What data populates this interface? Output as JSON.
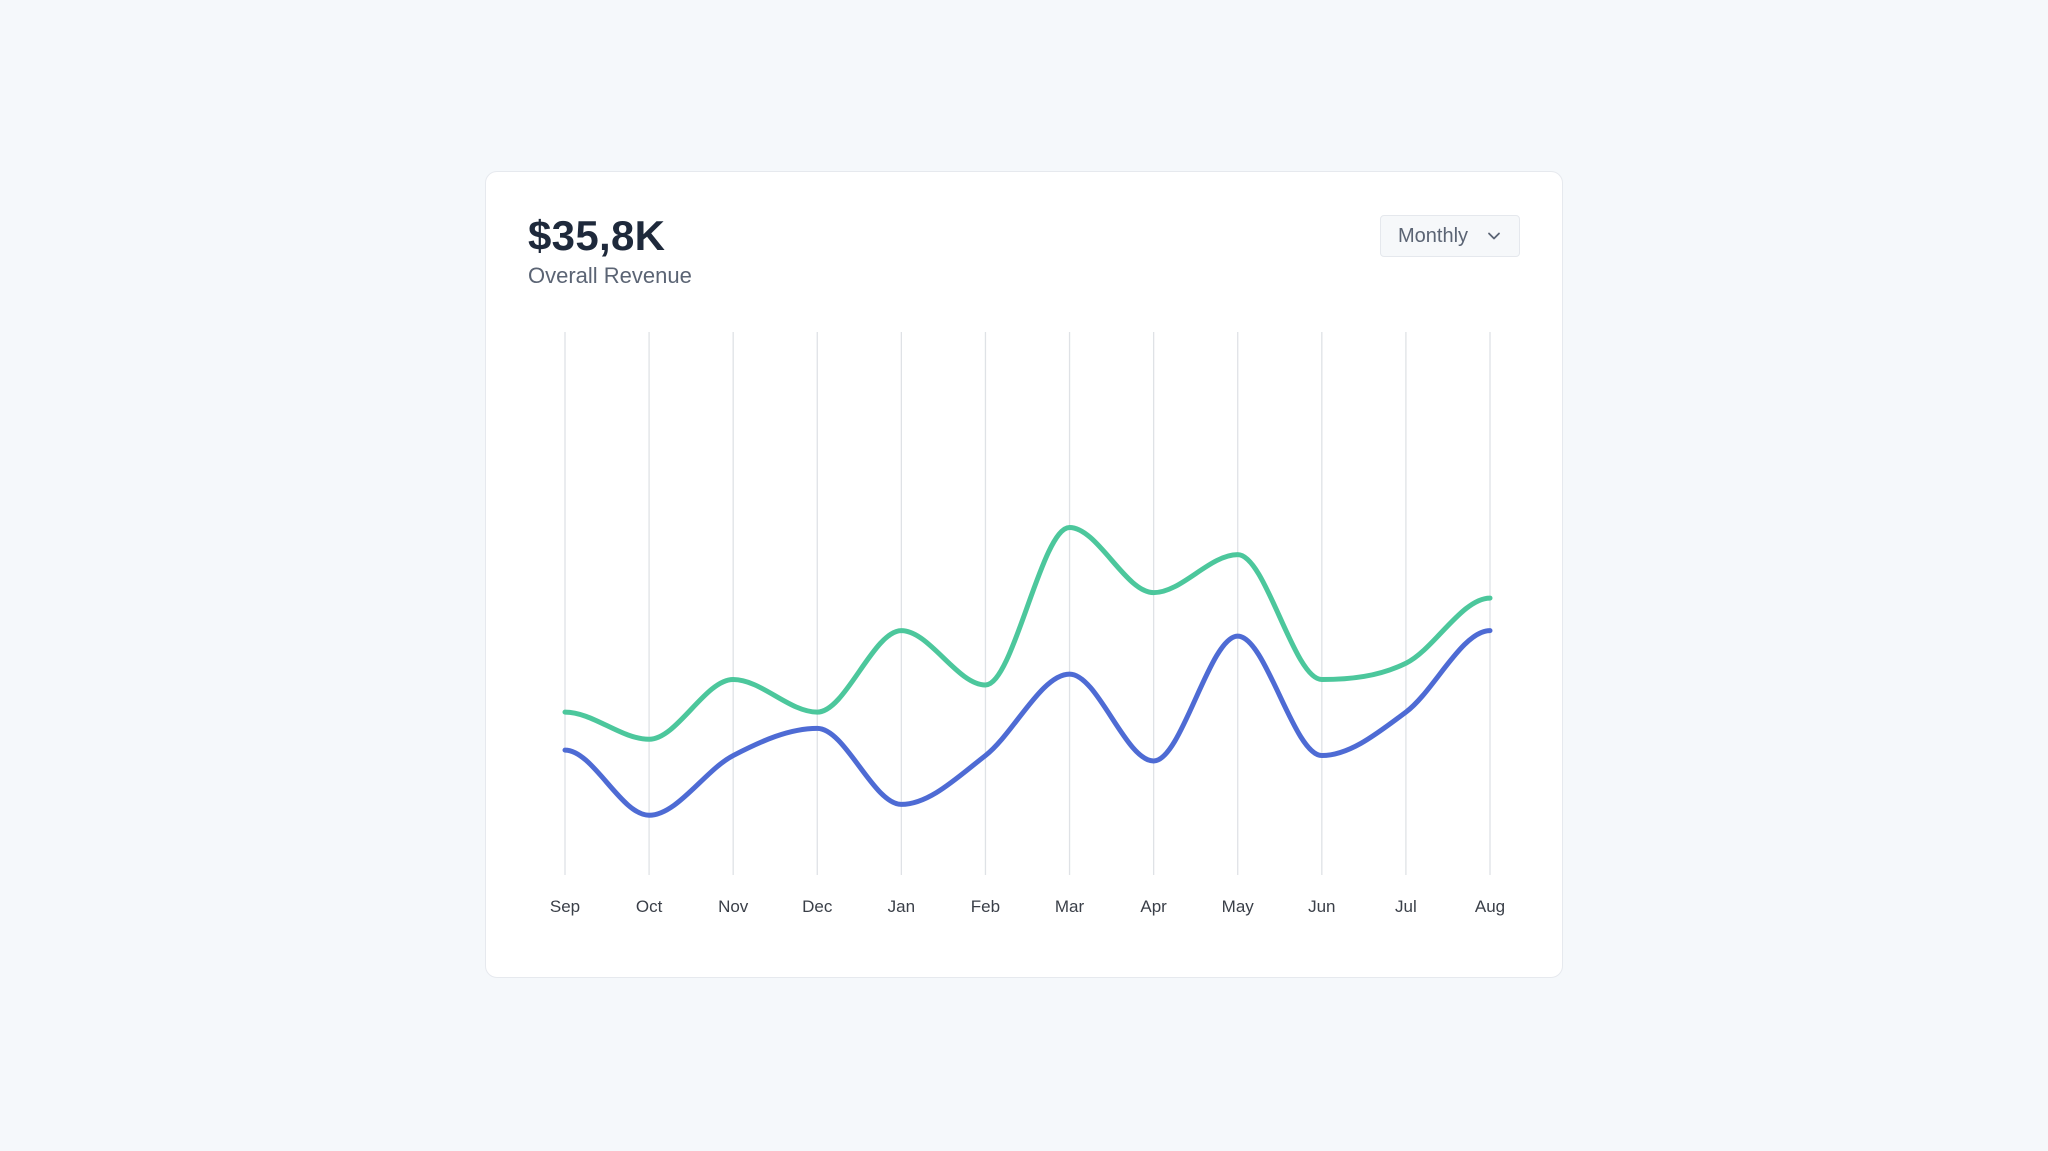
{
  "header": {
    "value": "$35,8K",
    "subtitle": "Overall Revenue"
  },
  "period_select": {
    "selected": "Monthly",
    "icon": "chevron-down-icon"
  },
  "colors": {
    "series_1": "#4cc79c",
    "series_2": "#4e6bd4",
    "grid": "#dfe2e6"
  },
  "chart_data": {
    "type": "line",
    "curve": "smooth",
    "categories": [
      "Sep",
      "Oct",
      "Nov",
      "Dec",
      "Jan",
      "Feb",
      "Mar",
      "Apr",
      "May",
      "Jun",
      "Jul",
      "Aug"
    ],
    "series": [
      {
        "color": "#4cc79c",
        "values": [
          30,
          25,
          36,
          30,
          45,
          35,
          64,
          52,
          59,
          36,
          39,
          51
        ]
      },
      {
        "color": "#4e6bd4",
        "values": [
          23,
          11,
          22,
          27,
          13,
          22,
          37,
          21,
          44,
          22,
          30,
          45
        ]
      }
    ],
    "ylim": [
      0,
      100
    ],
    "grid": "vertical",
    "legend": "none"
  }
}
